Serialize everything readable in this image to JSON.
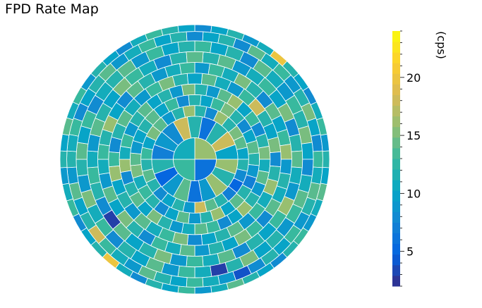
{
  "chart_data": {
    "type": "heatmap",
    "title": "FPD Rate Map",
    "colorbar": {
      "label": "(cps)",
      "range": [
        2,
        24
      ],
      "ticks": [
        5,
        10,
        15,
        20
      ],
      "tick_labels": [
        "5",
        "10",
        "15",
        "20"
      ]
    },
    "colormap": [
      "#352a87",
      "#0363e1",
      "#1485d4",
      "#06a7c6",
      "#38b99e",
      "#92bf73",
      "#d9ba56",
      "#fcce2e",
      "#f9fb0e"
    ],
    "rings": [
      {
        "r_inner": 0,
        "r_outer": 0.16,
        "values": [
          16,
          6,
          13,
          11
        ]
      },
      {
        "r_inner": 0.16,
        "r_outer": 0.32,
        "values": [
          6,
          12,
          18,
          10,
          16,
          12,
          16,
          9,
          6,
          14,
          9,
          5,
          12,
          7,
          9,
          8,
          18,
          12
        ]
      },
      {
        "r_inner": 0.32,
        "r_outer": 0.4,
        "values": [
          12,
          8,
          16,
          12,
          15,
          14,
          10,
          12,
          8,
          5,
          7,
          12,
          14,
          18,
          9,
          12,
          10,
          8,
          12,
          14,
          12,
          13,
          10,
          15,
          14,
          9,
          12,
          16
        ]
      },
      {
        "r_inner": 0.4,
        "r_outer": 0.48,
        "values": [
          10,
          13,
          15,
          12,
          8,
          10,
          14,
          12,
          9,
          7,
          12,
          14,
          10,
          16,
          12,
          9,
          14,
          10,
          8,
          12,
          13,
          11,
          15,
          14,
          9,
          10,
          12,
          14,
          10,
          13,
          8,
          12
        ]
      },
      {
        "r_inner": 0.48,
        "r_outer": 0.56,
        "values": [
          12,
          9,
          14,
          16,
          10,
          13,
          8,
          12,
          15,
          11,
          14,
          9,
          12,
          16,
          10,
          8,
          13,
          14,
          11,
          9,
          12,
          15,
          10,
          14,
          12,
          8,
          16,
          11,
          13,
          9,
          12,
          14,
          10,
          12,
          9,
          15
        ]
      },
      {
        "r_inner": 0.56,
        "r_outer": 0.64,
        "values": [
          14,
          11,
          9,
          13,
          18,
          12,
          10,
          15,
          8,
          12,
          16,
          11,
          13,
          9,
          14,
          12,
          10,
          8,
          15,
          13,
          11,
          14,
          9,
          12,
          10,
          16,
          13,
          8,
          12,
          14,
          11,
          9,
          13,
          15,
          12,
          10
        ]
      },
      {
        "r_inner": 0.64,
        "r_outer": 0.72,
        "values": [
          9,
          13,
          11,
          15,
          12,
          8,
          14,
          10,
          13,
          16,
          9,
          12,
          11,
          14,
          8,
          13,
          15,
          10,
          12,
          9,
          14,
          11,
          13,
          8,
          12,
          15,
          10,
          14,
          9,
          11,
          13,
          12,
          16,
          10,
          8,
          14,
          12,
          9,
          11,
          13
        ]
      },
      {
        "r_inner": 0.72,
        "r_outer": 0.8,
        "values": [
          12,
          14,
          9,
          11,
          13,
          10,
          15,
          8,
          12,
          14,
          11,
          9,
          16,
          13,
          10,
          12,
          8,
          14,
          11,
          13,
          9,
          15,
          12,
          10,
          14,
          3,
          8,
          12,
          13,
          11,
          9,
          14,
          12,
          10,
          15,
          13,
          11,
          8,
          12,
          14
        ]
      },
      {
        "r_inner": 0.8,
        "r_outer": 0.88,
        "values": [
          13,
          10,
          12,
          8,
          14,
          11,
          9,
          13,
          12,
          15,
          10,
          8,
          11,
          14,
          13,
          9,
          12,
          10,
          15,
          12,
          3,
          11,
          13,
          9,
          14,
          10,
          12,
          8,
          13,
          11,
          15,
          9,
          12,
          14,
          10,
          13,
          8,
          11,
          12,
          14,
          9,
          13,
          10,
          12
        ]
      },
      {
        "r_inner": 0.88,
        "r_outer": 0.95,
        "values": [
          10,
          12,
          8,
          14,
          11,
          13,
          9,
          12,
          15,
          10,
          8,
          13,
          11,
          14,
          12,
          9,
          13,
          10,
          12,
          8,
          4,
          9,
          11,
          13,
          10,
          12,
          14,
          9,
          11,
          13,
          18,
          12,
          10,
          14,
          9,
          12,
          11,
          13,
          8,
          10,
          12,
          14,
          9,
          11,
          13,
          10,
          12,
          8
        ]
      },
      {
        "r_inner": 0.95,
        "r_outer": 1.0,
        "values": [
          8,
          10,
          12,
          9,
          11,
          20,
          12,
          10,
          8,
          11,
          13,
          9,
          12,
          10,
          14,
          11,
          9,
          13,
          12,
          8,
          10,
          12,
          14,
          11,
          9,
          13,
          10,
          12,
          8,
          11,
          20,
          12,
          10,
          8,
          13,
          11,
          9,
          12,
          10,
          14,
          11,
          13,
          9,
          12,
          10,
          8,
          11,
          13,
          12,
          10
        ]
      }
    ]
  }
}
